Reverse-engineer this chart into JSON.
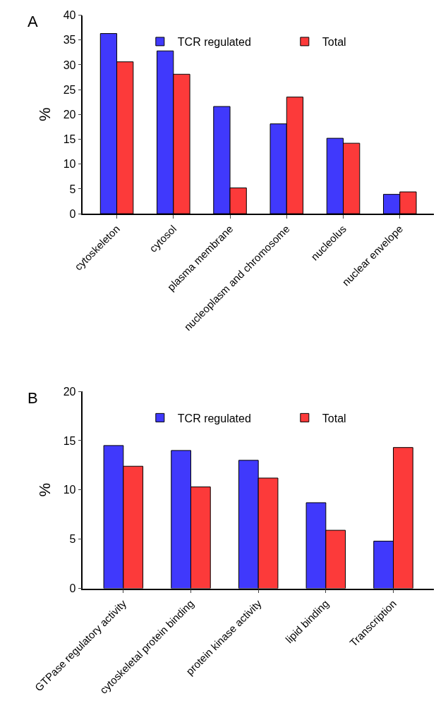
{
  "chart_data": [
    {
      "type": "bar",
      "annotations": [
        "A"
      ],
      "ylabel": "%",
      "categories": [
        "cytoskeleton",
        "cytosol",
        "plasma membrane",
        "nucleoplasm and chromosome",
        "nucleolus",
        "nuclear envelope"
      ],
      "series": [
        {
          "name": "TCR regulated",
          "color": "#4039fc",
          "values": [
            36.3,
            32.8,
            21.6,
            18.1,
            15.2,
            3.9
          ]
        },
        {
          "name": "Total",
          "color": "#fc3a3a",
          "values": [
            30.6,
            28.1,
            5.2,
            23.5,
            14.2,
            4.4
          ]
        }
      ],
      "ylim": [
        0,
        40
      ],
      "yticks": [
        0,
        5,
        10,
        15,
        20,
        25,
        30,
        35,
        40
      ],
      "grid": false,
      "legend": "top right"
    },
    {
      "type": "bar",
      "annotations": [
        "B"
      ],
      "ylabel": "%",
      "categories": [
        "GTPase regulatory activity",
        "cytoskeletal protein binding",
        "protein kinase activity",
        "lipid binding",
        "Transcription"
      ],
      "series": [
        {
          "name": "TCR regulated",
          "color": "#4039fc",
          "values": [
            14.5,
            14.0,
            13.0,
            8.7,
            4.8
          ]
        },
        {
          "name": "Total",
          "color": "#fc3a3a",
          "values": [
            12.4,
            10.3,
            11.2,
            5.9,
            14.3
          ]
        }
      ],
      "ylim": [
        0,
        20
      ],
      "yticks": [
        0,
        5,
        10,
        15,
        20
      ],
      "grid": false,
      "legend": "top right"
    }
  ]
}
